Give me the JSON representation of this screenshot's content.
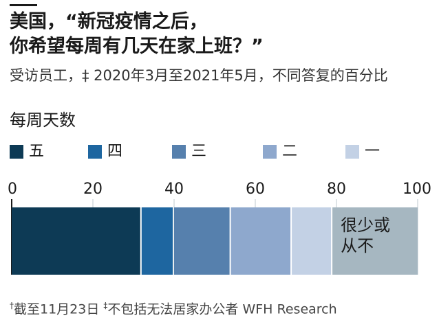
{
  "title_line1": "美国，“新冠疫情之后，",
  "title_line2": "你希望每周有几天在家上班？”",
  "subtitle": "受访员工，‡ 2020年3月至2021年5月，不同答复的百分比",
  "legend_title": "每周天数",
  "legend": [
    {
      "label": "五",
      "color": "#0d3a55"
    },
    {
      "label": "四",
      "color": "#1e66a0"
    },
    {
      "label": "三",
      "color": "#5680ad"
    },
    {
      "label": "二",
      "color": "#8ea8cd"
    },
    {
      "label": "一",
      "color": "#c3d1e5"
    }
  ],
  "chart_data": {
    "type": "bar",
    "orientation": "horizontal",
    "stacked": true,
    "xlim": [
      0,
      100
    ],
    "xticks": [
      "0",
      "20",
      "40",
      "60",
      "80",
      "100"
    ],
    "series": [
      {
        "name": "五",
        "value": 32,
        "color": "#0d3a55"
      },
      {
        "name": "四",
        "value": 8,
        "color": "#1e66a0"
      },
      {
        "name": "三",
        "value": 14,
        "color": "#5680ad"
      },
      {
        "name": "二",
        "value": 15,
        "color": "#8ea8cd"
      },
      {
        "name": "一",
        "value": 10,
        "color": "#c3d1e5"
      },
      {
        "name": "很少或从不",
        "value": 21,
        "color": "#a6b7c1"
      }
    ],
    "annotation_line1": "很少或",
    "annotation_line2": "从不"
  },
  "footnote_mark1": "†",
  "footnote_text1": "截至11月23日",
  "footnote_mark2": "‡",
  "footnote_text2": "不包括无法居家办公者",
  "footnote_source": "WFH Research"
}
